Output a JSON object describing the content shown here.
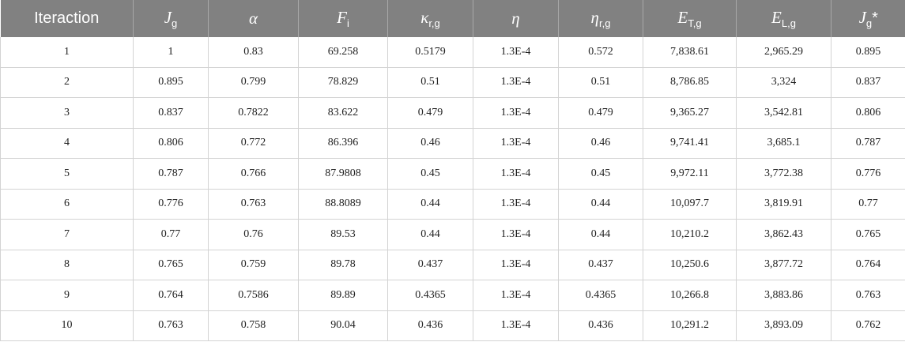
{
  "table": {
    "header": [
      {
        "base": "Iteraction"
      },
      {
        "base": "J",
        "sub": "g"
      },
      {
        "base": "α"
      },
      {
        "base": "F",
        "sub": "i"
      },
      {
        "base": "κ",
        "sub": "r,g"
      },
      {
        "base": "η"
      },
      {
        "base": "η",
        "sub": "r,g"
      },
      {
        "base": "E",
        "sub": "T,g"
      },
      {
        "base": "E",
        "sub": "L,g"
      },
      {
        "base": "J",
        "sub": "g",
        "tail": "*"
      }
    ],
    "rows": [
      [
        "1",
        "1",
        "0.83",
        "69.258",
        "0.5179",
        "1.3E-4",
        "0.572",
        "7,838.61",
        "2,965.29",
        "0.895"
      ],
      [
        "2",
        "0.895",
        "0.799",
        "78.829",
        "0.51",
        "1.3E-4",
        "0.51",
        "8,786.85",
        "3,324",
        "0.837"
      ],
      [
        "3",
        "0.837",
        "0.7822",
        "83.622",
        "0.479",
        "1.3E-4",
        "0.479",
        "9,365.27",
        "3,542.81",
        "0.806"
      ],
      [
        "4",
        "0.806",
        "0.772",
        "86.396",
        "0.46",
        "1.3E-4",
        "0.46",
        "9,741.41",
        "3,685.1",
        "0.787"
      ],
      [
        "5",
        "0.787",
        "0.766",
        "87.9808",
        "0.45",
        "1.3E-4",
        "0.45",
        "9,972.11",
        "3,772.38",
        "0.776"
      ],
      [
        "6",
        "0.776",
        "0.763",
        "88.8089",
        "0.44",
        "1.3E-4",
        "0.44",
        "10,097.7",
        "3,819.91",
        "0.77"
      ],
      [
        "7",
        "0.77",
        "0.76",
        "89.53",
        "0.44",
        "1.3E-4",
        "0.44",
        "10,210.2",
        "3,862.43",
        "0.765"
      ],
      [
        "8",
        "0.765",
        "0.759",
        "89.78",
        "0.437",
        "1.3E-4",
        "0.437",
        "10,250.6",
        "3,877.72",
        "0.764"
      ],
      [
        "9",
        "0.764",
        "0.7586",
        "89.89",
        "0.4365",
        "1.3E-4",
        "0.4365",
        "10,266.8",
        "3,883.86",
        "0.763"
      ],
      [
        "10",
        "0.763",
        "0.758",
        "90.04",
        "0.436",
        "1.3E-4",
        "0.436",
        "10,291.2",
        "3,893.09",
        "0.762"
      ]
    ]
  }
}
